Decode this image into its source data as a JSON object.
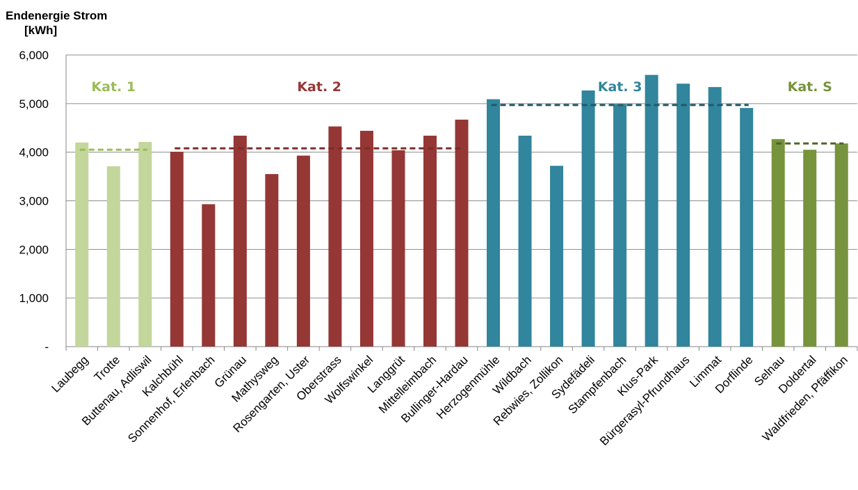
{
  "chart_data": {
    "type": "bar",
    "title": "",
    "ylabel": [
      "Endenergie Strom",
      "[kWh]"
    ],
    "ylim": [
      0,
      6000
    ],
    "yticks": [
      0,
      1000,
      2000,
      3000,
      4000,
      5000,
      6000
    ],
    "yticklabels": [
      "-",
      "1,000",
      "2,000",
      "3,000",
      "4,000",
      "5,000",
      "6,000"
    ],
    "grid": true,
    "categories": [
      "Laubegg",
      "Trotte",
      "Buttenau, Adliswil",
      "Kalchbühl",
      "Sonnenhof, Erlenbach",
      "Grünau",
      "Mathysweg",
      "Rosengarten, Uster",
      "Oberstrass",
      "Wolfswinkel",
      "Langgrüt",
      "Mittelleimbach",
      "Bullinger-Hardau",
      "Herzogenmühle",
      "Wildbach",
      "Rebwies, Zollikon",
      "Sydefädeli",
      "Stampfenbach",
      "Klus-Park",
      "Bürgerasyl-Pfrundhaus",
      "Limmat",
      "Dorflinde",
      "Selnau",
      "Doldertal",
      "Waldfrieden, Pfäffikon"
    ],
    "values": [
      4200,
      3710,
      4210,
      4010,
      2930,
      4340,
      3550,
      3930,
      4530,
      4440,
      4040,
      4340,
      4670,
      5090,
      4340,
      3720,
      5270,
      4990,
      5590,
      5410,
      5340,
      4910,
      4270,
      4050,
      4180
    ],
    "groups": [
      {
        "label": "Kat. 1",
        "start": 0,
        "end": 2,
        "color": "#c3d69b",
        "label_color": "#9bbb59",
        "average": 4050
      },
      {
        "label": "Kat. 2",
        "start": 3,
        "end": 12,
        "color": "#953735",
        "label_color": "#953735",
        "average": 4080
      },
      {
        "label": "Kat. 3",
        "start": 13,
        "end": 21,
        "color": "#31859c",
        "label_color": "#31859c",
        "average": 4970
      },
      {
        "label": "Kat. S",
        "start": 22,
        "end": 24,
        "color": "#77933c",
        "label_color": "#77933c",
        "average": 4180
      }
    ],
    "average_line_colors": [
      "#9bbb59",
      "#7b2c2a",
      "#215968",
      "#4f6228"
    ]
  }
}
